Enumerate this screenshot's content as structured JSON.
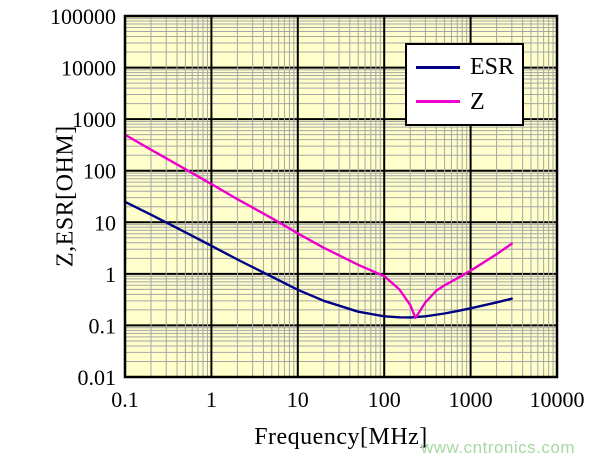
{
  "chart_data": {
    "type": "line",
    "title": "",
    "xlabel": "Frequency[MHz]",
    "ylabel": "Z,ESR[OHM]",
    "x_scale": "log",
    "y_scale": "log",
    "xlim": [
      0.1,
      10000
    ],
    "ylim": [
      0.01,
      100000
    ],
    "x_tick_labels": [
      "0.1",
      "1",
      "10",
      "100",
      "1000",
      "10000"
    ],
    "y_tick_labels": [
      "0.01",
      "0.1",
      "1",
      "10",
      "100",
      "1000",
      "10000",
      "100000"
    ],
    "grid": {
      "major": true,
      "minor": true,
      "style": "log minor gridlines on both axes"
    },
    "legend": {
      "position": "top-right-inside",
      "entries": [
        "ESR",
        "Z"
      ]
    },
    "series": [
      {
        "name": "ESR",
        "color": "#000080",
        "points": [
          [
            0.1,
            25
          ],
          [
            0.2,
            14
          ],
          [
            0.5,
            6.4
          ],
          [
            1,
            3.5
          ],
          [
            2,
            1.9
          ],
          [
            5,
            0.88
          ],
          [
            10,
            0.49
          ],
          [
            20,
            0.3
          ],
          [
            50,
            0.185
          ],
          [
            100,
            0.15
          ],
          [
            150,
            0.144
          ],
          [
            200,
            0.143
          ],
          [
            300,
            0.15
          ],
          [
            500,
            0.17
          ],
          [
            700,
            0.19
          ],
          [
            1000,
            0.215
          ],
          [
            2000,
            0.28
          ],
          [
            3000,
            0.33
          ]
        ]
      },
      {
        "name": "Z",
        "color": "#ee00cc",
        "points": [
          [
            0.1,
            500
          ],
          [
            0.2,
            255
          ],
          [
            0.5,
            107
          ],
          [
            1,
            55
          ],
          [
            2,
            28
          ],
          [
            5,
            12
          ],
          [
            10,
            6.1
          ],
          [
            20,
            3.2
          ],
          [
            50,
            1.5
          ],
          [
            100,
            0.9
          ],
          [
            150,
            0.5
          ],
          [
            200,
            0.25
          ],
          [
            230,
            0.14
          ],
          [
            300,
            0.28
          ],
          [
            400,
            0.47
          ],
          [
            500,
            0.6
          ],
          [
            700,
            0.82
          ],
          [
            1000,
            1.15
          ],
          [
            2000,
            2.4
          ],
          [
            3000,
            3.85
          ]
        ]
      }
    ]
  },
  "colors": {
    "page_bg": "#ffffff",
    "plot_bg": "#ffffcc",
    "minor_grid": "#a6a6a6",
    "major_grid": "#000000",
    "border": "#000000"
  },
  "watermark": {
    "text": "www.cntronics.com",
    "color": "#a5d9a5"
  }
}
